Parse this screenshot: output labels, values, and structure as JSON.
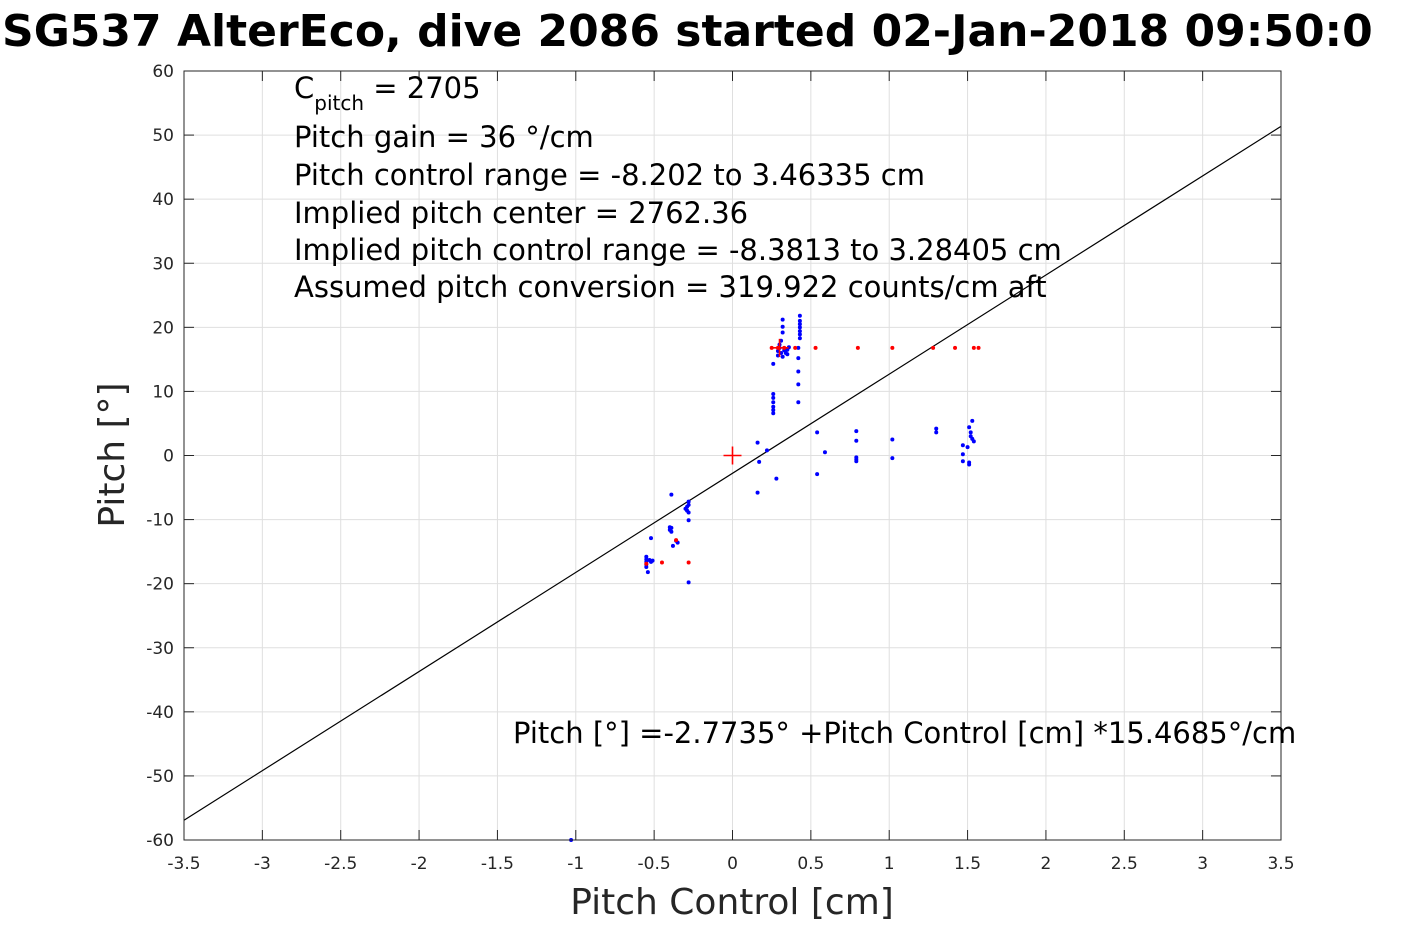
{
  "chart_data": {
    "type": "scatter",
    "title": "SG537 AlterEco, dive 2086 started 02-Jan-2018 09:50:0",
    "xlabel": "Pitch Control [cm]",
    "ylabel": "Pitch [°]",
    "xlim": [
      -3.5,
      3.5
    ],
    "ylim": [
      -60,
      60
    ],
    "grid": true,
    "xticks": [
      -3.5,
      -3,
      -2.5,
      -2,
      -1.5,
      -1,
      -0.5,
      0,
      0.5,
      1,
      1.5,
      2,
      2.5,
      3,
      3.5
    ],
    "xtick_labels": [
      "-3.5",
      "-3",
      "-2.5",
      "-2",
      "-1.5",
      "-1",
      "-0.5",
      "0",
      "0.5",
      "1",
      "1.5",
      "2",
      "2.5",
      "3",
      "3.5"
    ],
    "yticks": [
      60,
      50,
      40,
      30,
      20,
      10,
      0,
      -10,
      -20,
      -30,
      -40,
      -50,
      -60
    ],
    "ytick_labels": [
      "60",
      "50",
      "40",
      "30",
      "20",
      "10",
      "0",
      "-10",
      "-20",
      "-30",
      "-40",
      "-50",
      "-60"
    ],
    "annotations": {
      "c_pitch_prefix": "C",
      "c_pitch_sub": "pitch",
      "c_pitch_value": " = 2705",
      "line2": "Pitch gain = 36 °/cm",
      "line3": "Pitch control range = -8.202 to 3.46335 cm",
      "line4": "Implied pitch center = 2762.36",
      "line5": "Implied pitch control range = -8.3813 to 3.28405 cm",
      "line6": "Assumed pitch conversion = 319.922 counts/cm aft",
      "fit_equation": "Pitch [°] =-2.7735° +Pitch Control [cm] *15.4685°/cm"
    },
    "series": [
      {
        "color": "#0000ff",
        "marker": "dot",
        "points": [
          [
            -1.03,
            -60
          ],
          [
            -0.55,
            -15.8
          ],
          [
            -0.55,
            -16.2
          ],
          [
            -0.55,
            -16.6
          ],
          [
            -0.55,
            -17.0
          ],
          [
            -0.55,
            -17.4
          ],
          [
            -0.54,
            -18.2
          ],
          [
            -0.53,
            -16.3
          ],
          [
            -0.52,
            -16.6
          ],
          [
            -0.51,
            -16.4
          ],
          [
            -0.52,
            -12.9
          ],
          [
            -0.4,
            -11.2
          ],
          [
            -0.4,
            -11.6
          ],
          [
            -0.39,
            -11.9
          ],
          [
            -0.39,
            -11.3
          ],
          [
            -0.39,
            -6.1
          ],
          [
            -0.38,
            -14.1
          ],
          [
            -0.36,
            -13.3
          ],
          [
            -0.35,
            -13.6
          ],
          [
            -0.3,
            -8.3
          ],
          [
            -0.29,
            -8.0
          ],
          [
            -0.29,
            -8.6
          ],
          [
            -0.28,
            -7.2
          ],
          [
            -0.28,
            -7.7
          ],
          [
            -0.28,
            -8.9
          ],
          [
            -0.28,
            -10.1
          ],
          [
            -0.28,
            -19.8
          ],
          [
            0.16,
            2.0
          ],
          [
            0.17,
            -1.0
          ],
          [
            0.16,
            -5.8
          ],
          [
            0.22,
            0.8
          ],
          [
            0.28,
            -3.6
          ],
          [
            0.26,
            6.6
          ],
          [
            0.26,
            7.1
          ],
          [
            0.26,
            7.6
          ],
          [
            0.26,
            8.3
          ],
          [
            0.26,
            9.0
          ],
          [
            0.26,
            9.6
          ],
          [
            0.26,
            14.3
          ],
          [
            0.29,
            15.6
          ],
          [
            0.29,
            16.3
          ],
          [
            0.3,
            16.8
          ],
          [
            0.3,
            17.3
          ],
          [
            0.31,
            17.9
          ],
          [
            0.31,
            16.0
          ],
          [
            0.32,
            15.4
          ],
          [
            0.32,
            19.2
          ],
          [
            0.32,
            20.1
          ],
          [
            0.32,
            21.2
          ],
          [
            0.33,
            16.4
          ],
          [
            0.34,
            16.0
          ],
          [
            0.35,
            15.8
          ],
          [
            0.35,
            16.5
          ],
          [
            0.36,
            16.9
          ],
          [
            0.42,
            8.3
          ],
          [
            0.42,
            11.1
          ],
          [
            0.42,
            13.1
          ],
          [
            0.42,
            15.2
          ],
          [
            0.42,
            16.8
          ],
          [
            0.43,
            18.3
          ],
          [
            0.43,
            18.9
          ],
          [
            0.43,
            19.4
          ],
          [
            0.43,
            20.0
          ],
          [
            0.43,
            20.5
          ],
          [
            0.43,
            21.0
          ],
          [
            0.43,
            21.8
          ],
          [
            0.54,
            3.6
          ],
          [
            0.54,
            -2.9
          ],
          [
            0.59,
            0.5
          ],
          [
            0.79,
            3.8
          ],
          [
            0.79,
            2.3
          ],
          [
            0.79,
            -0.3
          ],
          [
            0.79,
            -0.6
          ],
          [
            0.79,
            -0.9
          ],
          [
            1.02,
            2.5
          ],
          [
            1.02,
            -0.4
          ],
          [
            1.3,
            4.2
          ],
          [
            1.3,
            3.6
          ],
          [
            1.47,
            1.6
          ],
          [
            1.47,
            0.2
          ],
          [
            1.47,
            -0.9
          ],
          [
            1.5,
            1.3
          ],
          [
            1.51,
            -1.1
          ],
          [
            1.51,
            -1.4
          ],
          [
            1.51,
            4.4
          ],
          [
            1.52,
            3.6
          ],
          [
            1.52,
            3.0
          ],
          [
            1.53,
            2.6
          ],
          [
            1.53,
            5.4
          ],
          [
            1.54,
            2.2
          ]
        ]
      },
      {
        "color": "#ff0000",
        "marker": "dot",
        "points": [
          [
            -0.55,
            -16.9
          ],
          [
            -0.45,
            -16.7
          ],
          [
            -0.28,
            -16.7
          ],
          [
            -0.36,
            -13.2
          ],
          [
            0.25,
            16.8
          ],
          [
            0.29,
            16.8
          ],
          [
            0.33,
            16.8
          ],
          [
            0.4,
            16.8
          ],
          [
            0.53,
            16.8
          ],
          [
            0.8,
            16.8
          ],
          [
            1.02,
            16.8
          ],
          [
            1.28,
            16.8
          ],
          [
            1.42,
            16.8
          ],
          [
            1.54,
            16.8
          ],
          [
            1.57,
            16.8
          ]
        ]
      }
    ],
    "markers": [
      {
        "label": "center",
        "x": 0,
        "y": 0,
        "color": "#ff0000",
        "symbol": "+"
      },
      {
        "label": "center2",
        "x": 0.3,
        "y": 16.8,
        "color": "#ff0000",
        "symbol": "+"
      }
    ],
    "fit_line": {
      "intercept": -2.7735,
      "slope": 15.4685,
      "color": "#000000"
    }
  }
}
